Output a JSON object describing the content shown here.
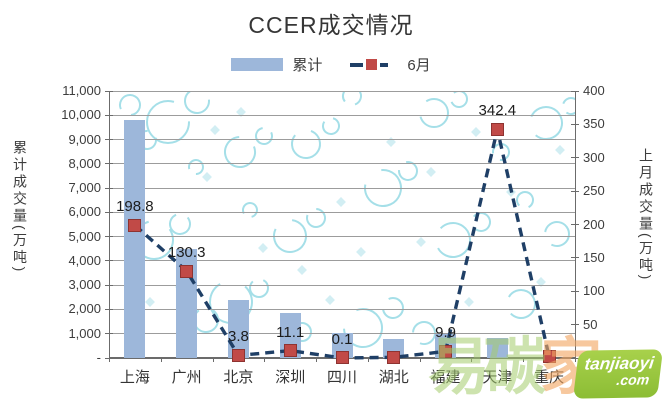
{
  "title": "CCER成交情况",
  "legend": {
    "bar_label": "累计",
    "line_label": "6月"
  },
  "left_axis": {
    "title": "累计成交量(万吨)",
    "tick_labels": [
      "11,000",
      "10,000",
      "9,000",
      "8,000",
      "7,000",
      "6,000",
      "5,000",
      "4,000",
      "3,000",
      "2,000",
      "1,000",
      "-"
    ]
  },
  "right_axis": {
    "title": "上月成交量(万吨)",
    "tick_labels": [
      "400",
      "350",
      "300",
      "250",
      "200",
      "150",
      "100",
      "50",
      "0"
    ]
  },
  "chart_data": {
    "type": "combo",
    "categories": [
      "上海",
      "广州",
      "北京",
      "深圳",
      "四川",
      "湖北",
      "福建",
      "天津",
      "重庆"
    ],
    "series": [
      {
        "name": "累计",
        "type": "bar",
        "axis": "left",
        "values": [
          9800,
          4500,
          2400,
          1870,
          1030,
          780,
          990,
          820,
          0
        ]
      },
      {
        "name": "6月",
        "type": "line",
        "axis": "right",
        "values": [
          198.8,
          130.3,
          3.8,
          11.1,
          0.1,
          1.0,
          9.9,
          342.4,
          2.0
        ],
        "labels": [
          "198.8",
          "130.3",
          "3.8",
          "11.1",
          "0.1",
          "",
          "9.9",
          "342.4",
          ""
        ]
      }
    ],
    "ylim_left": [
      0,
      11000
    ],
    "ylim_right": [
      0,
      400
    ],
    "grid": true,
    "legend_position": "top",
    "title": "CCER成交情况",
    "ylabel_left": "累计成交量(万吨)",
    "ylabel_right": "上月成交量(万吨)"
  },
  "watermark": {
    "chars": [
      {
        "text": "易"
      },
      {
        "text": "碳"
      },
      {
        "text": "家"
      }
    ],
    "badge_line1": "tanjiaoyi",
    "badge_line2": ".com"
  },
  "colors": {
    "bar": "#9DB7DA",
    "line": "#1F3F66",
    "marker": "#C14A47",
    "marker_border": "#8E3331",
    "grid": "#9C9C9C",
    "axis": "#6B6B6B",
    "text": "#3D3D3D",
    "bubble": "#A5DFE8",
    "diamond": "#D2EEF3",
    "badge_green": "#97C43D",
    "wm_green": "#A4CC6C",
    "wm_orange": "#F2A762"
  }
}
